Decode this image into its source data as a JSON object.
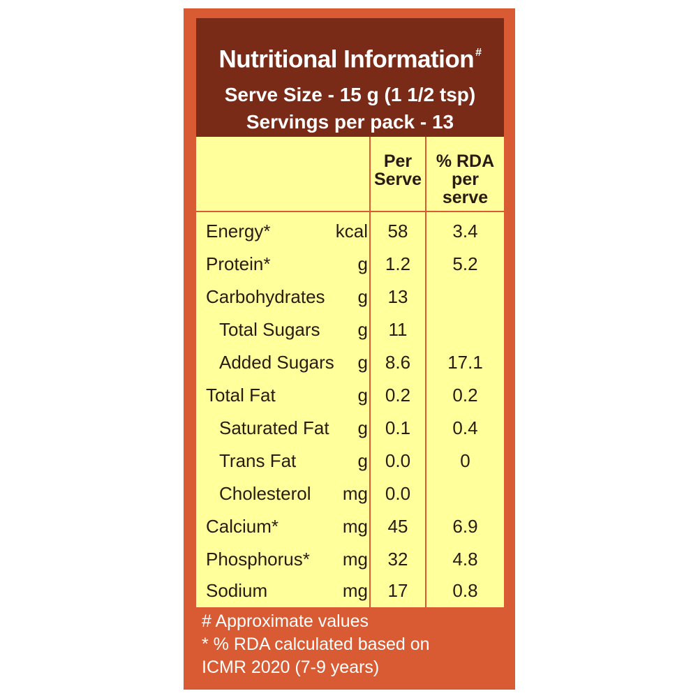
{
  "header": {
    "title": "Nutritional Information",
    "title_mark": "#",
    "serve_size": "Serve Size - 15 g (1 1/2 tsp)",
    "servings": "Servings per pack - 13"
  },
  "table": {
    "col_per": "Per Serve",
    "col_rda": "% RDA per serve",
    "rows": [
      {
        "name": "Energy*",
        "unit": "kcal",
        "per": "58",
        "rda": "3.4"
      },
      {
        "name": "Protein*",
        "unit": "g",
        "per": "1.2",
        "rda": "5.2"
      },
      {
        "name": "Carbohydrates",
        "unit": "g",
        "per": "13",
        "rda": ""
      },
      {
        "name": "Total Sugars",
        "unit": "g",
        "per": "11",
        "rda": ""
      },
      {
        "name": "Added Sugars",
        "unit": "g",
        "per": "8.6",
        "rda": "17.1"
      },
      {
        "name": "Total Fat",
        "unit": "g",
        "per": "0.2",
        "rda": "0.2"
      },
      {
        "name": "Saturated Fat",
        "unit": "g",
        "per": "0.1",
        "rda": "0.4"
      },
      {
        "name": "Trans Fat",
        "unit": "g",
        "per": "0.0",
        "rda": "0"
      },
      {
        "name": "Cholesterol",
        "unit": "mg",
        "per": "0.0",
        "rda": ""
      },
      {
        "name": "Calcium*",
        "unit": "mg",
        "per": "45",
        "rda": "6.9"
      },
      {
        "name": "Phosphorus*",
        "unit": "mg",
        "per": "32",
        "rda": "4.8"
      },
      {
        "name": "Sodium",
        "unit": "mg",
        "per": "17",
        "rda": "0.8"
      }
    ]
  },
  "footnotes": {
    "line1": "# Approximate values",
    "line2": "* % RDA calculated based on",
    "line3": "ICMR 2020 (7-9 years)"
  },
  "colors": {
    "panel": "#d85b33",
    "header": "#7a2b18",
    "table": "#ffff9c"
  }
}
